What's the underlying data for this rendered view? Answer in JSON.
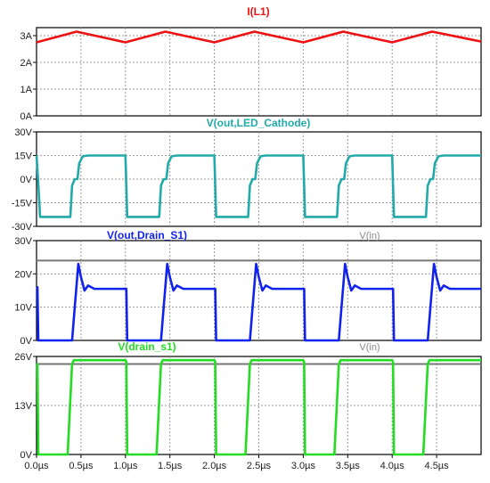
{
  "x_axis": {
    "min": 0,
    "max": 5,
    "unit": "µs",
    "ticks": [
      0,
      0.5,
      1,
      1.5,
      2,
      2.5,
      3,
      3.5,
      4,
      4.5
    ],
    "tick_labels": [
      "0.0µs",
      "0.5µs",
      "1.0µs",
      "1.5µs",
      "2.0µs",
      "2.5µs",
      "3.0µs",
      "3.5µs",
      "4.0µs",
      "4.5µs"
    ]
  },
  "colors": {
    "IL1": "#ee1111",
    "V_out_led": "#22aaaa",
    "V_out_drain": "#1122ee",
    "V_drain": "#22dd22",
    "V_in": "#777777",
    "grid": "#999999",
    "frame": "#000000"
  },
  "chart_data": [
    {
      "type": "line",
      "title": "I(L1)",
      "ylim": [
        0,
        3.3
      ],
      "ticks": [
        0,
        1,
        2,
        3
      ],
      "tick_labels": [
        "0A",
        "1A",
        "2A",
        "3A"
      ],
      "series": [
        {
          "name": "I(L1)",
          "color_key": "IL1",
          "x": [
            0,
            0.45,
            1.0,
            1.45,
            2.0,
            2.45,
            3.0,
            3.45,
            4.0,
            4.45,
            5.0
          ],
          "y": [
            2.75,
            3.15,
            2.75,
            3.15,
            2.75,
            3.15,
            2.75,
            3.15,
            2.75,
            3.15,
            2.78
          ]
        }
      ]
    },
    {
      "type": "line",
      "title": "V(out,LED_Cathode)",
      "ylim": [
        -30,
        30
      ],
      "ticks": [
        -30,
        -15,
        0,
        15,
        30
      ],
      "tick_labels": [
        "-30V",
        "-15V",
        "0V",
        "15V",
        "30V"
      ],
      "series": [
        {
          "name": "V(out,LED_Cathode)",
          "color_key": "V_out_led",
          "x": [
            0,
            0.02,
            0.04,
            0.38,
            0.4,
            0.43,
            0.46,
            0.48,
            0.52,
            0.58,
            1.0,
            1.02,
            1.38,
            1.4,
            1.43,
            1.46,
            1.48,
            1.52,
            1.58,
            2.0,
            2.02,
            2.38,
            2.4,
            2.43,
            2.46,
            2.48,
            2.52,
            2.58,
            3.0,
            3.02,
            3.38,
            3.4,
            3.43,
            3.46,
            3.48,
            3.52,
            3.58,
            4.0,
            4.02,
            4.38,
            4.4,
            4.43,
            4.46,
            4.48,
            4.52,
            4.58,
            5.0
          ],
          "y": [
            15,
            -3,
            -24,
            -24,
            -4,
            0,
            0,
            10,
            14.5,
            15,
            15,
            -24,
            -24,
            -4,
            0,
            0,
            10,
            14.5,
            15,
            15,
            -24,
            -24,
            -4,
            0,
            0,
            10,
            14.5,
            15,
            15,
            -24,
            -24,
            -4,
            0,
            0,
            10,
            14.5,
            15,
            15,
            -24,
            -24,
            -4,
            0,
            0,
            10,
            14.5,
            15,
            15
          ]
        }
      ]
    },
    {
      "type": "line",
      "title": "V(out,Drain_S1)",
      "legend_right": "V(in)",
      "ylim": [
        0,
        30
      ],
      "ticks": [
        0,
        10,
        20,
        30
      ],
      "tick_labels": [
        "0V",
        "10V",
        "20V",
        "30V"
      ],
      "vin_level": 24,
      "series": [
        {
          "name": "V(out,Drain_S1)",
          "color_key": "V_out_drain",
          "x": [
            0,
            0.01,
            0.02,
            0.4,
            0.43,
            0.47,
            0.5,
            0.54,
            0.58,
            0.65,
            1.0,
            1.01,
            1.02,
            1.4,
            1.43,
            1.47,
            1.5,
            1.54,
            1.58,
            1.65,
            2.0,
            2.01,
            2.02,
            2.4,
            2.43,
            2.47,
            2.5,
            2.54,
            2.58,
            2.65,
            3.0,
            3.01,
            3.02,
            3.4,
            3.43,
            3.47,
            3.5,
            3.54,
            3.58,
            3.65,
            4.0,
            4.01,
            4.02,
            4.4,
            4.43,
            4.47,
            4.5,
            4.54,
            4.58,
            4.65,
            5.0
          ],
          "y": [
            16,
            16,
            0,
            0,
            10,
            23,
            19,
            15,
            16.5,
            15.5,
            15.5,
            15.5,
            0,
            0,
            10,
            23,
            19,
            15,
            16.5,
            15.5,
            15.5,
            15.5,
            0,
            0,
            10,
            23,
            19,
            15,
            16.5,
            15.5,
            15.5,
            15.5,
            0,
            0,
            10,
            23,
            19,
            15,
            16.5,
            15.5,
            15.5,
            15.5,
            0,
            0,
            10,
            23,
            19,
            15,
            16.5,
            15.5,
            15.5
          ]
        }
      ]
    },
    {
      "type": "line",
      "title": "V(drain_s1)",
      "legend_right": "V(in)",
      "ylim": [
        0,
        26
      ],
      "ticks": [
        0,
        13,
        26
      ],
      "tick_labels": [
        "0V",
        "13V",
        "26V"
      ],
      "vin_level": 24,
      "series": [
        {
          "name": "V(drain_s1)",
          "color_key": "V_drain",
          "x": [
            0,
            0.01,
            0.02,
            0.35,
            0.4,
            0.42,
            1.0,
            1.01,
            1.02,
            1.35,
            1.4,
            1.42,
            2.0,
            2.01,
            2.02,
            2.35,
            2.4,
            2.42,
            3.0,
            3.01,
            3.02,
            3.35,
            3.4,
            3.42,
            4.0,
            4.01,
            4.02,
            4.35,
            4.4,
            4.42,
            5.0
          ],
          "y": [
            24,
            24,
            0,
            0,
            24,
            25,
            25,
            24.5,
            0,
            0,
            24,
            25,
            25,
            24.5,
            0,
            0,
            24,
            25,
            25,
            24.5,
            0,
            0,
            24,
            25,
            25,
            24.5,
            0,
            0,
            24,
            25,
            25
          ]
        }
      ]
    }
  ]
}
